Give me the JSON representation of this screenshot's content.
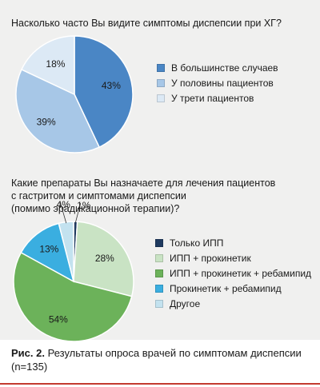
{
  "chart_data": [
    {
      "type": "pie",
      "title": "Насколько часто Вы видите симптомы диспепсии при ХГ?",
      "slices": [
        {
          "label": "В большинстве случаев",
          "value": 43,
          "value_label": "43%",
          "color": "#4a86c5"
        },
        {
          "label": "У половины пациентов",
          "value": 39,
          "value_label": "39%",
          "color": "#a7c7e7"
        },
        {
          "label": "У трети пациентов",
          "value": 18,
          "value_label": "18%",
          "color": "#dce9f5"
        }
      ]
    },
    {
      "type": "pie",
      "title": "Какие препараты Вы назначаете для лечения пациентов с гастритом и симптомами диспепсии (помимо эрадикационной терапии)?",
      "title_lines": [
        "Какие препараты Вы назначаете для лечения пациентов",
        "с гастритом и симптомами диспепсии",
        "(помимо эрадикационной терапии)?"
      ],
      "slices": [
        {
          "label": "Только ИПП",
          "value": 1,
          "value_label": "1%",
          "color": "#1f3a5f"
        },
        {
          "label": "ИПП + прокинетик",
          "value": 28,
          "value_label": "28%",
          "color": "#c9e3c4"
        },
        {
          "label": "ИПП + прокинетик + ребамипид",
          "value": 54,
          "value_label": "54%",
          "color": "#6cb25a"
        },
        {
          "label": "Прокинетик + ребамипид",
          "value": 13,
          "value_label": "13%",
          "color": "#3aaee0"
        },
        {
          "label": "Другое",
          "value": 4,
          "value_label": "4%",
          "color": "#c3e2ef"
        }
      ]
    }
  ],
  "caption": {
    "label": "Рис. 2.",
    "text": "Результаты опроса врачей по симптомам диспепсии (n=135)"
  },
  "colors": {
    "panel_bg": "#f0f0ef",
    "accent_rule": "#c33a2f"
  }
}
